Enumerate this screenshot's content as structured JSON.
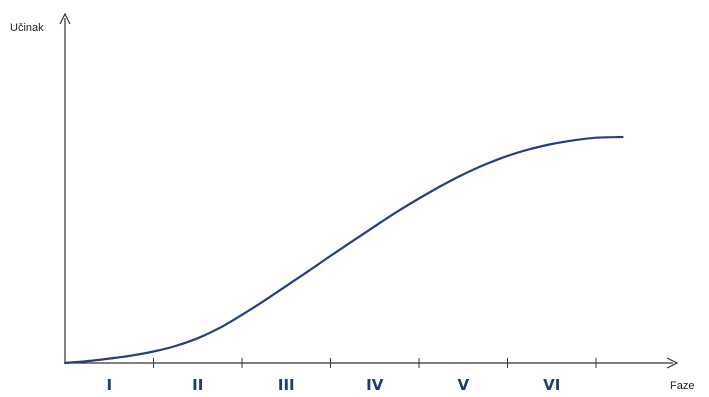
{
  "chart_data": {
    "type": "line",
    "title": "",
    "ylabel": "Učinak",
    "xlabel": "Faze",
    "categories": [
      "I",
      "II",
      "III",
      "IV",
      "V",
      "VI"
    ],
    "x": [
      0,
      0.25,
      0.5,
      0.75,
      1.0,
      1.25,
      1.5,
      1.75,
      2.0,
      2.25,
      2.5,
      2.75,
      3.0,
      3.25,
      3.5,
      3.75,
      4.0,
      4.25,
      4.5,
      4.75,
      5.0,
      5.25,
      5.5,
      5.75,
      6.0,
      6.3
    ],
    "series": [
      {
        "values": [
          0,
          0.5,
          1.2,
          2.0,
          3.1,
          4.6,
          6.7,
          9.5,
          13.0,
          16.8,
          20.8,
          24.8,
          28.9,
          32.9,
          36.9,
          40.8,
          44.4,
          47.8,
          50.9,
          53.6,
          55.9,
          57.7,
          59.1,
          60.1,
          60.8,
          61.0
        ]
      }
    ],
    "xlim": [
      0,
      6.7
    ],
    "ylim": [
      0,
      90
    ],
    "grid": false,
    "legend": "none",
    "line_color": "#243f86",
    "axis_color": "#333333",
    "label_color": "#1f3a7a"
  }
}
